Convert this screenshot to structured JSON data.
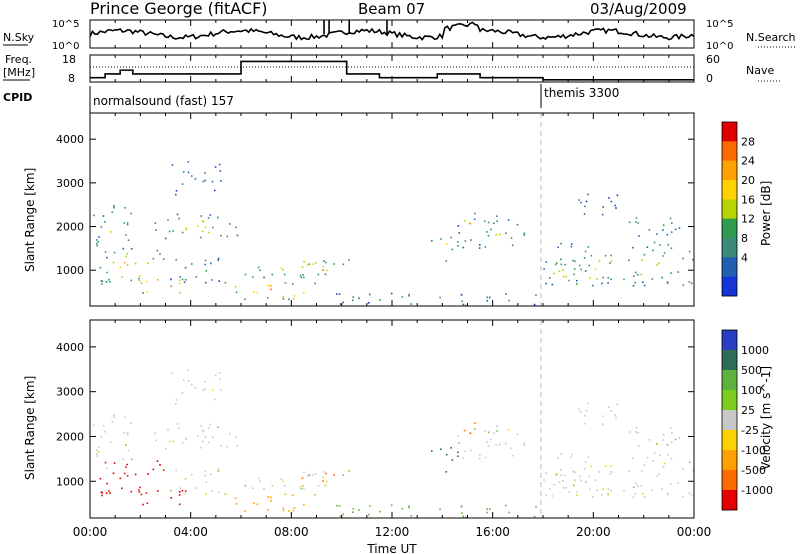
{
  "header": {
    "title": "Prince George (fitACF)",
    "beam": "Beam 07",
    "date": "03/Aug/2009"
  },
  "noise_panel": {
    "left_label": "N.Sky",
    "right_label": "N.Search",
    "right_legend_line": "dotted",
    "left_ticks": [
      "10^5",
      "10^0"
    ],
    "right_ticks": [
      "10^5",
      "10^0"
    ]
  },
  "freq_panel": {
    "left_label_1": "Freq.",
    "left_label_2": "[MHz]",
    "right_label": "Nave",
    "left_ticks": [
      "18",
      "8"
    ],
    "right_ticks": [
      "60",
      "0"
    ],
    "freq_steps": [
      {
        "t": 0.0,
        "mhz": 9.6
      },
      {
        "t": 0.5,
        "mhz": 9.6
      },
      {
        "t": 0.6,
        "mhz": 11.0
      },
      {
        "t": 1.2,
        "mhz": 12.4
      },
      {
        "t": 1.7,
        "mhz": 11.0
      },
      {
        "t": 6.0,
        "mhz": 15.6
      },
      {
        "t": 10.2,
        "mhz": 11.0
      },
      {
        "t": 11.5,
        "mhz": 9.6
      },
      {
        "t": 13.8,
        "mhz": 11.0
      },
      {
        "t": 15.2,
        "mhz": 11.0
      },
      {
        "t": 15.5,
        "mhz": 9.6
      },
      {
        "t": 17.5,
        "mhz": 9.6
      },
      {
        "t": 18.0,
        "mhz": 8.8
      },
      {
        "t": 24.0,
        "mhz": 8.8
      }
    ]
  },
  "cpid": {
    "label": "CPID",
    "segments": [
      {
        "name": "normalsound (fast) 157",
        "start_hour": 0
      },
      {
        "name": "themis 3300",
        "start_hour": 18
      }
    ]
  },
  "power_panel": {
    "ylabel": "Slant Range [km]",
    "colorbar_label": "Power [dB]",
    "colorbar_ticks": [
      "28",
      "24",
      "20",
      "16",
      "12",
      "8",
      "4"
    ],
    "colors": [
      "#e10000",
      "#ff6a00",
      "#ffa200",
      "#ffd200",
      "#b8d400",
      "#2f9a50",
      "#3a8a7a",
      "#2060b0",
      "#1434d8"
    ]
  },
  "velocity_panel": {
    "ylabel": "Slant Range [km]",
    "colorbar_label": "Velocity [m s^-1]",
    "colorbar_ticks": [
      "1000",
      "500",
      "100",
      "25",
      "-25",
      "-100",
      "-500",
      "-1000"
    ],
    "colors": [
      "#2a3ec4",
      "#2e6e56",
      "#5fb13f",
      "#7ccd22",
      "#c8c8c8",
      "#fad200",
      "#ffa000",
      "#ff6a00",
      "#e20000"
    ]
  },
  "chart_data": {
    "type": "heatmap",
    "x_axis": {
      "label": "Time UT",
      "range_hours": [
        0,
        24
      ],
      "tick_labels": [
        "00:00",
        "04:00",
        "08:00",
        "12:00",
        "16:00",
        "20:00",
        "00:00"
      ]
    },
    "y_axis": {
      "label": "Slant Range [km]",
      "range_km": [
        180,
        4600
      ],
      "tick_labels": [
        "1000",
        "2000",
        "3000",
        "4000"
      ]
    },
    "series": [
      {
        "name": "Power [dB]",
        "range": [
          0,
          30
        ]
      },
      {
        "name": "Velocity [m s^-1]",
        "range": [
          -1000,
          1000
        ]
      }
    ],
    "echo_regions": [
      {
        "t0": 0.1,
        "t1": 1.8,
        "r0": 1300,
        "r1": 2500,
        "power_db": 14,
        "velocity": 0
      },
      {
        "t0": 0.3,
        "t1": 3.0,
        "r0": 700,
        "r1": 1500,
        "power_db": 20,
        "velocity": -700
      },
      {
        "t0": 1.5,
        "t1": 4.0,
        "r0": 400,
        "r1": 900,
        "power_db": 24,
        "velocity": -800
      },
      {
        "t0": 2.4,
        "t1": 6.0,
        "r0": 1600,
        "r1": 2300,
        "power_db": 16,
        "velocity": 0
      },
      {
        "t0": 3.0,
        "t1": 5.5,
        "r0": 700,
        "r1": 1300,
        "power_db": 10,
        "velocity": 0
      },
      {
        "t0": 3.2,
        "t1": 5.2,
        "r0": 2700,
        "r1": 3500,
        "power_db": 8,
        "velocity": 0
      },
      {
        "t0": 5.3,
        "t1": 9.5,
        "r0": 350,
        "r1": 750,
        "power_db": 24,
        "velocity": -200
      },
      {
        "t0": 6.0,
        "t1": 10.4,
        "r0": 850,
        "r1": 1300,
        "power_db": 18,
        "velocity": 0
      },
      {
        "t0": 8.0,
        "t1": 10.0,
        "r0": 900,
        "r1": 1200,
        "power_db": 24,
        "velocity": -300
      },
      {
        "t0": 9.6,
        "t1": 18.0,
        "r0": 200,
        "r1": 500,
        "power_db": 10,
        "velocity": 100
      },
      {
        "t0": 13.5,
        "t1": 14.7,
        "r0": 1200,
        "r1": 1800,
        "power_db": 18,
        "velocity": 400
      },
      {
        "t0": 14.5,
        "t1": 17.5,
        "r0": 1500,
        "r1": 2300,
        "power_db": 12,
        "velocity": 0
      },
      {
        "t0": 14.7,
        "t1": 15.3,
        "r0": 1900,
        "r1": 2400,
        "power_db": 22,
        "velocity": -400
      },
      {
        "t0": 18.0,
        "t1": 24.0,
        "r0": 650,
        "r1": 1650,
        "power_db": 14,
        "velocity": 0
      },
      {
        "t0": 18.0,
        "t1": 21.0,
        "r0": 700,
        "r1": 1200,
        "power_db": 20,
        "velocity": 0
      },
      {
        "t0": 20.8,
        "t1": 23.5,
        "r0": 1800,
        "r1": 2300,
        "power_db": 12,
        "velocity": 0
      },
      {
        "t0": 19.0,
        "t1": 21.0,
        "r0": 2200,
        "r1": 2800,
        "power_db": 6,
        "velocity": 0
      }
    ],
    "grid": false,
    "legend": "colorbars right"
  }
}
